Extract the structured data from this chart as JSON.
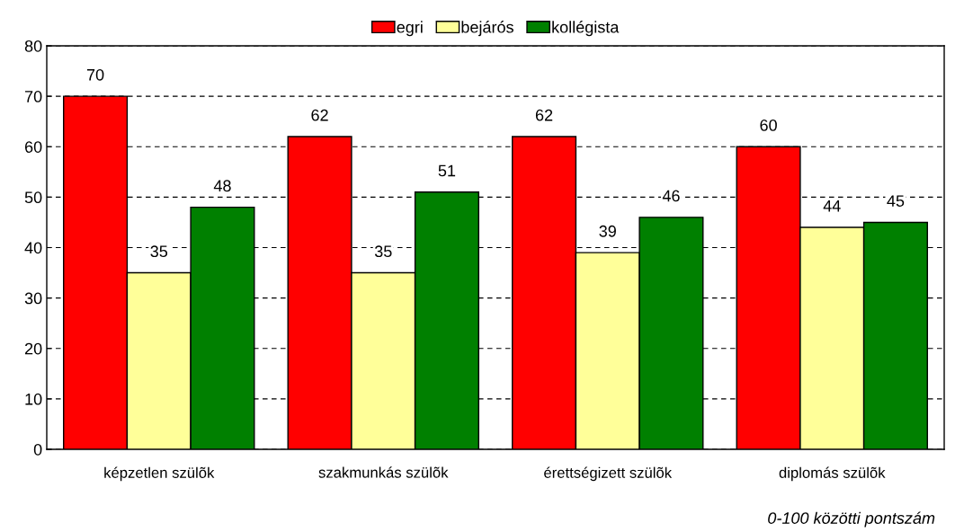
{
  "chart_data": {
    "type": "bar",
    "categories": [
      "képzetlen szülõk",
      "szakmunkás szülõk",
      "érettségizett szülõk",
      "diplomás szülõk"
    ],
    "series": [
      {
        "name": "egri",
        "color": "#ff0000",
        "values": [
          70,
          62,
          62,
          60
        ]
      },
      {
        "name": "bejárós",
        "color": "#ffff99",
        "values": [
          35,
          35,
          39,
          44
        ]
      },
      {
        "name": "kollégista",
        "color": "#008000",
        "values": [
          48,
          51,
          46,
          45
        ]
      }
    ],
    "ylim": [
      0,
      80
    ],
    "yticks": [
      0,
      10,
      20,
      30,
      40,
      50,
      60,
      70,
      80
    ],
    "grid": "y",
    "legend": "top",
    "data_labels": true,
    "annotations": [
      "0-100 közötti pontszám"
    ]
  }
}
